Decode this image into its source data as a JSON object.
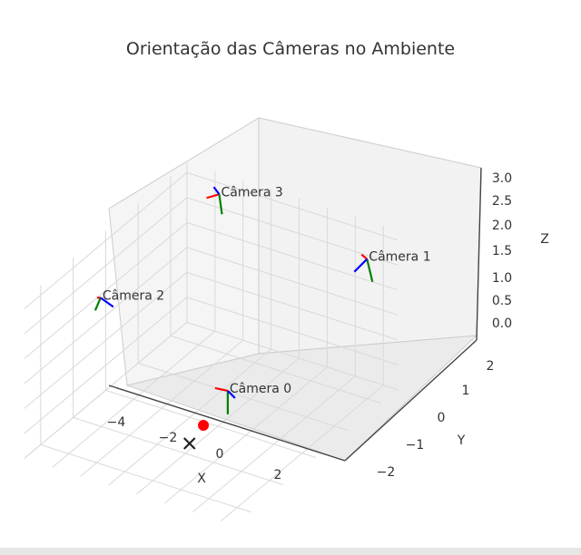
{
  "chart_data": {
    "type": "scatter3d",
    "title": "Orientação das Câmeras no Ambiente",
    "xlabel": "X",
    "ylabel": "Y",
    "zlabel": "Z",
    "x_ticks": [
      "−4",
      "−2",
      "0",
      "2"
    ],
    "y_ticks": [
      "−2",
      "−1",
      "0",
      "1",
      "2"
    ],
    "z_ticks": [
      "0.0",
      "0.5",
      "1.0",
      "1.5",
      "2.0",
      "2.5",
      "3.0"
    ],
    "grid": true,
    "cameras": [
      {
        "name": "Câmera 0",
        "x": 0.7,
        "y": -0.3,
        "z": 1.0
      },
      {
        "name": "Câmera 1",
        "x": 3.0,
        "y": 2.0,
        "z": 2.8
      },
      {
        "name": "Câmera 2",
        "x": -3.6,
        "y": -0.5,
        "z": 2.2
      },
      {
        "name": "Câmera 3",
        "x": -2.5,
        "y": 2.2,
        "z": 3.0
      }
    ],
    "point_markers": [
      {
        "marker": "circle",
        "color": "#ff0000",
        "x": -0.4,
        "y": -0.1,
        "z": 0.0
      },
      {
        "marker": "x",
        "color": "#222222",
        "x": -0.2,
        "y": -0.7,
        "z": 0.0
      }
    ],
    "frame_axis_colors": [
      "#ff0000",
      "#008000",
      "#0000ff"
    ]
  }
}
